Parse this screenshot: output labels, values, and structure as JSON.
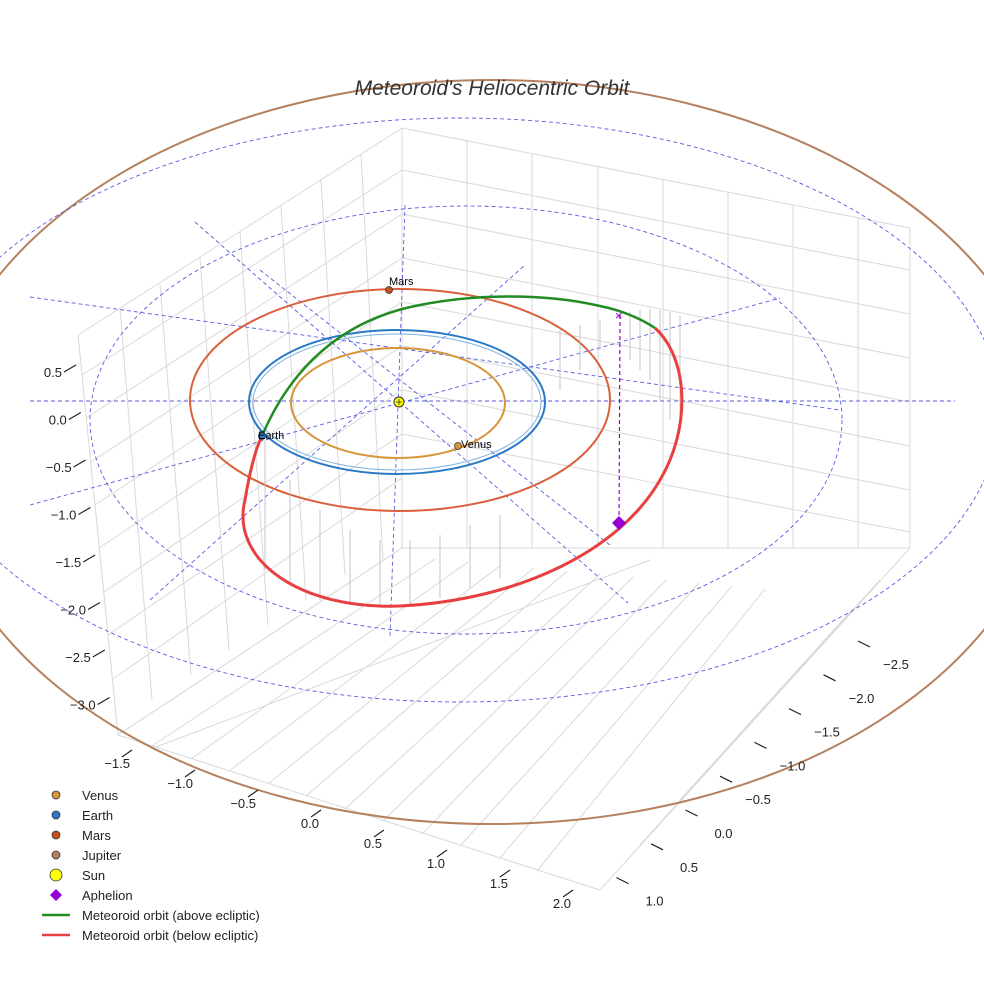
{
  "chart_data": {
    "type": "3d-line",
    "title": "Meteoroid's Heliocentric Orbit",
    "z_ticks": [
      "0.5",
      "0.0",
      "−0.5",
      "−1.0",
      "−1.5",
      "−2.0",
      "−2.5",
      "−3.0"
    ],
    "x_ticks": [
      "−1.5",
      "−1.0",
      "−0.5",
      "0.0",
      "0.5",
      "1.0",
      "1.5",
      "2.0"
    ],
    "y_ticks": [
      "−2.5",
      "−2.0",
      "−1.5",
      "−1.0",
      "−0.5",
      "0.0",
      "0.5",
      "1.0"
    ],
    "planets": [
      {
        "name": "Venus",
        "orbit_radius_au": 0.72,
        "color": "#d8963c",
        "label": "Venus"
      },
      {
        "name": "Earth",
        "orbit_radius_au": 1.0,
        "color": "#2a78c8",
        "label": "Earth"
      },
      {
        "name": "Mars",
        "orbit_radius_au": 1.52,
        "color": "#d9603a",
        "label": "Mars"
      },
      {
        "name": "Jupiter",
        "orbit_radius_au": 5.2,
        "color": "#b5805e",
        "label": ""
      }
    ],
    "sun": {
      "name": "Sun",
      "color": "#ffff00"
    },
    "aphelion": {
      "name": "Aphelion",
      "color": "#9400d3"
    },
    "meteoroid": {
      "above_label": "Meteoroid orbit (above ecliptic)",
      "below_label": "Meteoroid orbit (below ecliptic)",
      "above_color": "#228b22",
      "below_color": "#e84040"
    },
    "legend": [
      {
        "label": "Venus",
        "marker": "dot",
        "color": "#d8963c"
      },
      {
        "label": "Earth",
        "marker": "dot",
        "color": "#2a78c8"
      },
      {
        "label": "Mars",
        "marker": "dot",
        "color": "#c8501e"
      },
      {
        "label": "Jupiter",
        "marker": "dot",
        "color": "#b5805e"
      },
      {
        "label": "Sun",
        "marker": "sun",
        "color": "#ffff00"
      },
      {
        "label": "Aphelion",
        "marker": "diamond",
        "color": "#9400d3"
      },
      {
        "label": "Meteoroid orbit (above ecliptic)",
        "marker": "line",
        "color": "#228b22"
      },
      {
        "label": "Meteoroid orbit (below ecliptic)",
        "marker": "line",
        "color": "#e84040"
      }
    ]
  }
}
